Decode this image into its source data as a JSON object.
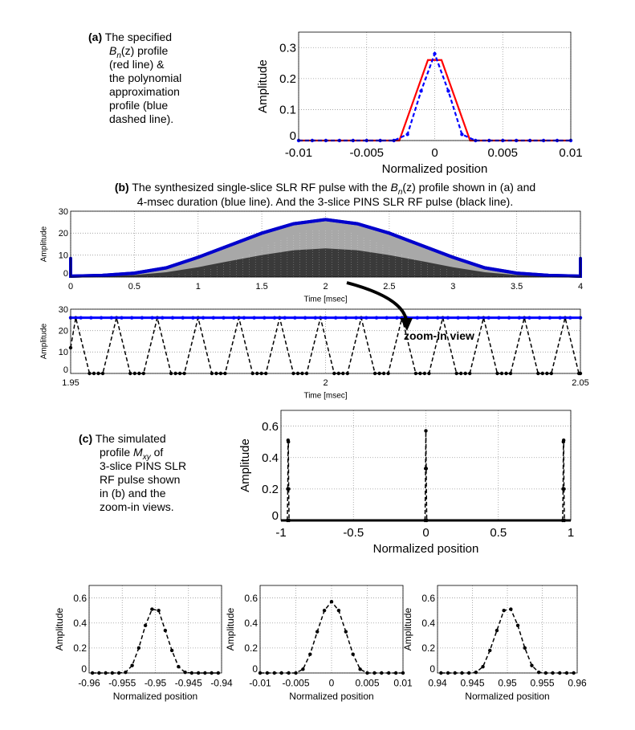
{
  "captions": {
    "a": {
      "tag": "(a)",
      "lines": [
        "The specified",
        "B",
        "n",
        "(z) profile",
        "(red line) &",
        "the polynomial",
        "approximation",
        "profile (blue",
        "dashed line)."
      ]
    },
    "b": {
      "tag": "(b)",
      "line1a": "The synthesized single-slice SLR RF pulse with the ",
      "line1b": "B",
      "line1c": "n",
      "line1d": "(z) profile shown in (a) and",
      "line2": "4-msec duration (blue line). And the 3-slice PINS SLR RF pulse (black line)."
    },
    "c": {
      "tag": "(c)",
      "l1": "The simulated",
      "l2a": "profile ",
      "l2b": "M",
      "l2c": "xy",
      "l2d": " of",
      "l3": "3-slice PINS SLR",
      "l4": "RF pulse shown",
      "l5": "in (b) and the",
      "l6": "zoom-in views."
    },
    "annotation": "zoom-in view"
  },
  "chart_data": [
    {
      "id": "a",
      "type": "line",
      "xlabel": "Normalized position",
      "ylabel": "Amplitude",
      "xlim": [
        -0.01,
        0.01
      ],
      "ylim": [
        0,
        0.35
      ],
      "xticks": [
        -0.01,
        -0.005,
        0,
        0.005,
        0.01
      ],
      "xticklabels": [
        "-0.01",
        "-0.005",
        "0",
        "0.005",
        "0.01"
      ],
      "yticks": [
        0,
        0.1,
        0.2,
        0.3
      ],
      "yticklabels": [
        "0",
        "0.1",
        "0.2",
        "0.3"
      ],
      "series": [
        {
          "name": "specified profile",
          "color": "#ff0000",
          "dash": false,
          "markers": false,
          "points": [
            [
              -0.01,
              0
            ],
            [
              -0.0026,
              0
            ],
            [
              -0.0005,
              0.26
            ],
            [
              0.0005,
              0.26
            ],
            [
              0.0026,
              0
            ],
            [
              0.01,
              0
            ]
          ]
        },
        {
          "name": "polynomial approximation",
          "color": "#0000ff",
          "dash": true,
          "markers": true,
          "points": [
            [
              -0.01,
              0
            ],
            [
              -0.009,
              0
            ],
            [
              -0.008,
              0
            ],
            [
              -0.007,
              0
            ],
            [
              -0.006,
              0
            ],
            [
              -0.005,
              0
            ],
            [
              -0.004,
              0
            ],
            [
              -0.003,
              0
            ],
            [
              -0.002,
              0.02
            ],
            [
              -0.001,
              0.16
            ],
            [
              0,
              0.28
            ],
            [
              0.001,
              0.16
            ],
            [
              0.002,
              0.02
            ],
            [
              0.003,
              0
            ],
            [
              0.004,
              0
            ],
            [
              0.005,
              0
            ],
            [
              0.006,
              0
            ],
            [
              0.007,
              0
            ],
            [
              0.008,
              0
            ],
            [
              0.009,
              0
            ],
            [
              0.01,
              0
            ]
          ]
        }
      ]
    },
    {
      "id": "b1",
      "type": "line",
      "xlabel": "Time  [msec]",
      "ylabel": "Amplitude",
      "xlim": [
        0,
        4
      ],
      "ylim": [
        0,
        30
      ],
      "xticks": [
        0,
        0.5,
        1,
        1.5,
        2,
        2.5,
        3,
        3.5,
        4
      ],
      "xticklabels": [
        "0",
        "0.5",
        "1",
        "1.5",
        "2",
        "2.5",
        "3",
        "3.5",
        "4"
      ],
      "yticks": [
        0,
        10,
        20,
        30
      ],
      "yticklabels": [
        "0",
        "10",
        "20",
        "30"
      ],
      "series": [
        {
          "name": "PINS pulse envelope (grey)",
          "color": "#a8a8a8",
          "area": true,
          "points": [
            [
              0,
              0.4
            ],
            [
              0.25,
              0.8
            ],
            [
              0.5,
              1.8
            ],
            [
              0.75,
              4.2
            ],
            [
              1,
              9
            ],
            [
              1.25,
              14.5
            ],
            [
              1.5,
              20
            ],
            [
              1.75,
              24.3
            ],
            [
              2,
              26.2
            ],
            [
              2.25,
              24.3
            ],
            [
              2.5,
              20
            ],
            [
              2.75,
              14.5
            ],
            [
              3,
              9
            ],
            [
              3.25,
              4.2
            ],
            [
              3.5,
              1.8
            ],
            [
              3.75,
              0.8
            ],
            [
              4,
              0.4
            ]
          ]
        },
        {
          "name": "PINS pulse dense (black)",
          "color": "#3a3a3a",
          "area": true,
          "points": [
            [
              0,
              0
            ],
            [
              0.5,
              0.9
            ],
            [
              0.75,
              2.2
            ],
            [
              1,
              4.5
            ],
            [
              1.25,
              7.3
            ],
            [
              1.5,
              10
            ],
            [
              1.75,
              12.2
            ],
            [
              2,
              13.1
            ],
            [
              2.25,
              12.2
            ],
            [
              2.5,
              10
            ],
            [
              2.75,
              7.3
            ],
            [
              3,
              4.5
            ],
            [
              3.25,
              2.2
            ],
            [
              3.5,
              0.9
            ],
            [
              4,
              0
            ]
          ]
        },
        {
          "name": "single-slice SLR pulse",
          "color": "#0000cc",
          "dash": false,
          "markers": false,
          "thick": true,
          "points": [
            [
              0,
              8.5
            ],
            [
              0,
              0.4
            ],
            [
              0.25,
              0.8
            ],
            [
              0.5,
              1.8
            ],
            [
              0.75,
              4.2
            ],
            [
              1,
              9
            ],
            [
              1.25,
              14.5
            ],
            [
              1.5,
              20
            ],
            [
              1.75,
              24.3
            ],
            [
              2,
              26.2
            ],
            [
              2.25,
              24.3
            ],
            [
              2.5,
              20
            ],
            [
              2.75,
              14.5
            ],
            [
              3,
              9
            ],
            [
              3.25,
              4.2
            ],
            [
              3.5,
              1.8
            ],
            [
              3.75,
              0.8
            ],
            [
              4,
              0.4
            ],
            [
              4,
              8.5
            ]
          ]
        }
      ]
    },
    {
      "id": "b2",
      "type": "line",
      "xlabel": "Time  [msec]",
      "ylabel": "Amplitude",
      "xlim": [
        1.95,
        2.05
      ],
      "ylim": [
        0,
        30
      ],
      "xticks": [
        1.95,
        2,
        2.05
      ],
      "xticklabels": [
        "1.95",
        "2",
        "2.05"
      ],
      "yticks": [
        0,
        10,
        20,
        30
      ],
      "yticklabels": [
        "0",
        "10",
        "20",
        "30"
      ],
      "blue_level": 26,
      "blue_marker_step": 0.002,
      "black_peaks": [
        1.951,
        1.959,
        1.967,
        1.975,
        1.983,
        1.991,
        1.999,
        2.007,
        2.015,
        2.023,
        2.031,
        2.039,
        2.047
      ],
      "black_peak_amplitude": 26,
      "black_start_value": 12,
      "series": []
    },
    {
      "id": "c",
      "type": "line",
      "xlabel": "Normalized position",
      "ylabel": "Amplitude",
      "xlim": [
        -1,
        1
      ],
      "ylim": [
        0,
        0.7
      ],
      "xticks": [
        -1,
        -0.5,
        0,
        0.5,
        1
      ],
      "xticklabels": [
        "-1",
        "-0.5",
        "0",
        "0.5",
        "1"
      ],
      "yticks": [
        0,
        0.2,
        0.4,
        0.6
      ],
      "yticklabels": [
        "0",
        "0.2",
        "0.4",
        "0.6"
      ],
      "series": [
        {
          "name": "baseline",
          "color": "#000000",
          "dash": false,
          "markers": false,
          "thick": true,
          "points": [
            [
              -1,
              0
            ],
            [
              1,
              0
            ]
          ]
        },
        {
          "name": "slice -0.95",
          "color": "#000000",
          "dash": true,
          "markers": true,
          "points": [
            [
              -0.956,
              0
            ],
            [
              -0.953,
              0.2
            ],
            [
              -0.951,
              0.51
            ],
            [
              -0.949,
              0.5
            ],
            [
              -0.947,
              0.2
            ],
            [
              -0.944,
              0
            ]
          ]
        },
        {
          "name": "slice 0",
          "color": "#000000",
          "dash": true,
          "markers": true,
          "points": [
            [
              -0.006,
              0
            ],
            [
              -0.002,
              0.33
            ],
            [
              0,
              0.57
            ],
            [
              0.002,
              0.33
            ],
            [
              0.006,
              0
            ]
          ]
        },
        {
          "name": "slice 0.95",
          "color": "#000000",
          "dash": true,
          "markers": true,
          "points": [
            [
              0.944,
              0
            ],
            [
              0.947,
              0.2
            ],
            [
              0.949,
              0.5
            ],
            [
              0.951,
              0.51
            ],
            [
              0.953,
              0.2
            ],
            [
              0.956,
              0
            ]
          ]
        }
      ]
    },
    {
      "id": "d1",
      "type": "line",
      "xlabel": "Normalized position",
      "ylabel": "Amplitude",
      "xlim": [
        -0.96,
        -0.94
      ],
      "ylim": [
        0,
        0.7
      ],
      "xticks": [
        -0.96,
        -0.955,
        -0.95,
        -0.945,
        -0.94
      ],
      "xticklabels": [
        "-0.96",
        "-0.955",
        "-0.95",
        "-0.945",
        "-0.94"
      ],
      "yticks": [
        0,
        0.2,
        0.4,
        0.6
      ],
      "yticklabels": [
        "0",
        "0.2",
        "0.4",
        "0.6"
      ],
      "series": [
        {
          "name": "zoom slice -0.95",
          "color": "#000000",
          "dash": true,
          "markers": true,
          "points": [
            [
              -0.9595,
              0
            ],
            [
              -0.9585,
              0
            ],
            [
              -0.9575,
              0
            ],
            [
              -0.9565,
              0
            ],
            [
              -0.9555,
              0
            ],
            [
              -0.9545,
              0.005
            ],
            [
              -0.9535,
              0.06
            ],
            [
              -0.9525,
              0.2
            ],
            [
              -0.9515,
              0.38
            ],
            [
              -0.9505,
              0.51
            ],
            [
              -0.9495,
              0.5
            ],
            [
              -0.9485,
              0.34
            ],
            [
              -0.9475,
              0.18
            ],
            [
              -0.9465,
              0.05
            ],
            [
              -0.9455,
              0.005
            ],
            [
              -0.9445,
              0
            ],
            [
              -0.9435,
              0
            ],
            [
              -0.9425,
              0
            ],
            [
              -0.9415,
              0
            ],
            [
              -0.9405,
              0
            ]
          ]
        }
      ]
    },
    {
      "id": "d2",
      "type": "line",
      "xlabel": "Normalized position",
      "ylabel": "Amplitude",
      "xlim": [
        -0.01,
        0.01
      ],
      "ylim": [
        0,
        0.7
      ],
      "xticks": [
        -0.01,
        -0.005,
        0,
        0.005,
        0.01
      ],
      "xticklabels": [
        "-0.01",
        "-0.005",
        "0",
        "0.005",
        "0.01"
      ],
      "yticks": [
        0,
        0.2,
        0.4,
        0.6
      ],
      "yticklabels": [
        "0",
        "0.2",
        "0.4",
        "0.6"
      ],
      "series": [
        {
          "name": "zoom slice 0",
          "color": "#000000",
          "dash": true,
          "markers": true,
          "points": [
            [
              -0.01,
              0
            ],
            [
              -0.009,
              0
            ],
            [
              -0.008,
              0
            ],
            [
              -0.007,
              0
            ],
            [
              -0.006,
              0
            ],
            [
              -0.005,
              0
            ],
            [
              -0.004,
              0.03
            ],
            [
              -0.003,
              0.15
            ],
            [
              -0.002,
              0.33
            ],
            [
              -0.001,
              0.5
            ],
            [
              0,
              0.57
            ],
            [
              0.001,
              0.5
            ],
            [
              0.002,
              0.33
            ],
            [
              0.003,
              0.15
            ],
            [
              0.004,
              0.03
            ],
            [
              0.005,
              0
            ],
            [
              0.006,
              0
            ],
            [
              0.007,
              0
            ],
            [
              0.008,
              0
            ],
            [
              0.009,
              0
            ],
            [
              0.01,
              0
            ]
          ]
        }
      ]
    },
    {
      "id": "d3",
      "type": "line",
      "xlabel": "Normalized position",
      "ylabel": "Amplitude",
      "xlim": [
        0.94,
        0.96
      ],
      "ylim": [
        0,
        0.7
      ],
      "xticks": [
        0.94,
        0.945,
        0.95,
        0.955,
        0.96
      ],
      "xticklabels": [
        "0.94",
        "0.945",
        "0.95",
        "0.955",
        "0.96"
      ],
      "yticks": [
        0,
        0.2,
        0.4,
        0.6
      ],
      "yticklabels": [
        "0",
        "0.2",
        "0.4",
        "0.6"
      ],
      "series": [
        {
          "name": "zoom slice 0.95",
          "color": "#000000",
          "dash": true,
          "markers": true,
          "points": [
            [
              0.9405,
              0
            ],
            [
              0.9415,
              0
            ],
            [
              0.9425,
              0
            ],
            [
              0.9435,
              0
            ],
            [
              0.9445,
              0
            ],
            [
              0.9455,
              0.005
            ],
            [
              0.9465,
              0.05
            ],
            [
              0.9475,
              0.18
            ],
            [
              0.9485,
              0.34
            ],
            [
              0.9495,
              0.5
            ],
            [
              0.9505,
              0.51
            ],
            [
              0.9515,
              0.38
            ],
            [
              0.9525,
              0.2
            ],
            [
              0.9535,
              0.06
            ],
            [
              0.9545,
              0.005
            ],
            [
              0.9555,
              0
            ],
            [
              0.9565,
              0
            ],
            [
              0.9575,
              0
            ],
            [
              0.9585,
              0
            ],
            [
              0.9595,
              0
            ]
          ]
        }
      ]
    }
  ]
}
